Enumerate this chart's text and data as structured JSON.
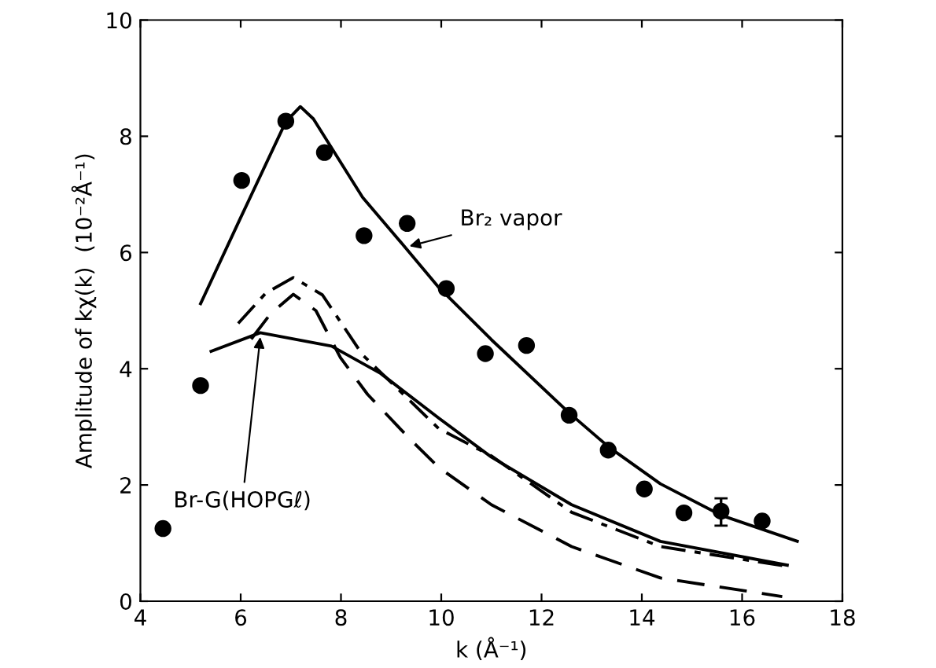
{
  "chart_data": {
    "type": "line",
    "xlabel": "k (Å⁻¹)",
    "ylabel": "Amplitude of kχ(k)  (10⁻²Å⁻¹)",
    "xlim": [
      4,
      18
    ],
    "ylim": [
      0,
      10
    ],
    "xticks": [
      4,
      6,
      8,
      10,
      12,
      14,
      16,
      18
    ],
    "yticks": [
      0,
      2,
      4,
      6,
      8,
      10
    ],
    "grid": false,
    "legend": false,
    "series": [
      {
        "type": "scatter",
        "color": "#000000",
        "marker": "circle",
        "x": [
          4.45,
          5.2,
          6.02,
          6.9,
          7.67,
          8.46,
          9.32,
          10.1,
          10.88,
          11.7,
          12.55,
          13.33,
          14.05,
          14.84,
          15.58,
          16.4
        ],
        "values": [
          1.25,
          3.71,
          7.24,
          8.26,
          7.72,
          6.29,
          6.5,
          5.38,
          4.26,
          4.4,
          3.2,
          2.6,
          1.93,
          1.52,
          1.55,
          1.38
        ],
        "errors": [
          null,
          null,
          null,
          null,
          null,
          null,
          null,
          null,
          null,
          null,
          null,
          null,
          null,
          null,
          [
            1.3,
            1.77
          ],
          null
        ]
      },
      {
        "color": "#000000",
        "line_style": "solid",
        "x": [
          5.2,
          6.0,
          6.9,
          7.19,
          7.45,
          8.43,
          9.28,
          9.95,
          11.0,
          12.55,
          13.33,
          14.37,
          15.58,
          17.1
        ],
        "values": [
          5.12,
          6.6,
          8.25,
          8.51,
          8.3,
          6.95,
          6.09,
          5.4,
          4.5,
          3.24,
          2.66,
          2.02,
          1.48,
          1.03
        ]
      },
      {
        "color": "#000000",
        "line_style": "solid",
        "x": [
          5.41,
          6.39,
          7.81,
          8.79,
          9.95,
          11.0,
          12.6,
          14.37,
          16.9
        ],
        "values": [
          4.3,
          4.62,
          4.39,
          3.92,
          3.15,
          2.48,
          1.66,
          1.03,
          0.62
        ]
      },
      {
        "color": "#000000",
        "line_style": "dashdot",
        "x": [
          5.95,
          6.5,
          7.05,
          7.63,
          8.43,
          9.95,
          11.0,
          12.6,
          14.37,
          16.9
        ],
        "values": [
          4.78,
          5.3,
          5.57,
          5.27,
          4.24,
          2.97,
          2.5,
          1.53,
          0.94,
          0.6
        ]
      },
      {
        "color": "#000000",
        "line_style": "dashed",
        "x": [
          6.21,
          6.6,
          7.05,
          7.5,
          7.99,
          8.53,
          9.32,
          9.95,
          11.0,
          12.6,
          14.37,
          16.8
        ],
        "values": [
          4.51,
          4.95,
          5.28,
          5.0,
          4.19,
          3.56,
          2.84,
          2.3,
          1.66,
          0.94,
          0.4,
          0.08
        ]
      }
    ],
    "annotations": [
      {
        "text": "Br₂ vapor",
        "x": 9.28,
        "y": 6.09
      },
      {
        "text": "Br-G(HOPGℓ)",
        "x": 6.4,
        "y": 4.62
      }
    ]
  }
}
